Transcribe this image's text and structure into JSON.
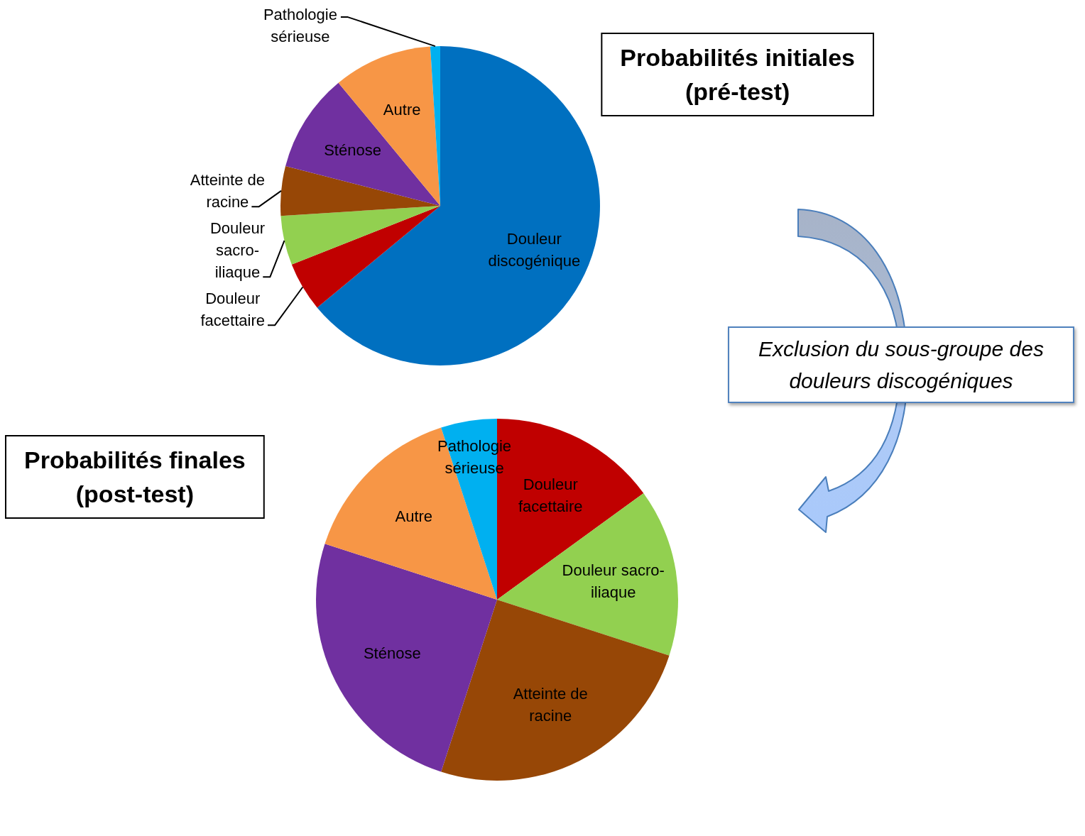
{
  "chart_data": [
    {
      "type": "pie",
      "title": "Probabilités initiales (pré-test)",
      "categories": [
        "Douleur discogénique",
        "Douleur facettaire",
        "Douleur sacro-iliaque",
        "Atteinte de racine",
        "Sténose",
        "Autre",
        "Pathologie sérieuse"
      ],
      "values": [
        64,
        5,
        5,
        5,
        10,
        10,
        1
      ],
      "colors": [
        "#0070c0",
        "#c00000",
        "#92d050",
        "#974706",
        "#7030a0",
        "#f79646",
        "#00b0f0"
      ]
    },
    {
      "type": "pie",
      "title": "Probabilités finales (post-test)",
      "categories": [
        "Douleur facettaire",
        "Douleur sacro-iliaque",
        "Atteinte de racine",
        "Sténose",
        "Autre",
        "Pathologie sérieuse"
      ],
      "values": [
        15,
        15,
        25,
        25,
        15,
        5
      ],
      "colors": [
        "#c00000",
        "#92d050",
        "#974706",
        "#7030a0",
        "#f79646",
        "#00b0f0"
      ],
      "annotations": [
        "Exclusion du sous-groupe des douleurs discogéniques"
      ]
    }
  ]
}
